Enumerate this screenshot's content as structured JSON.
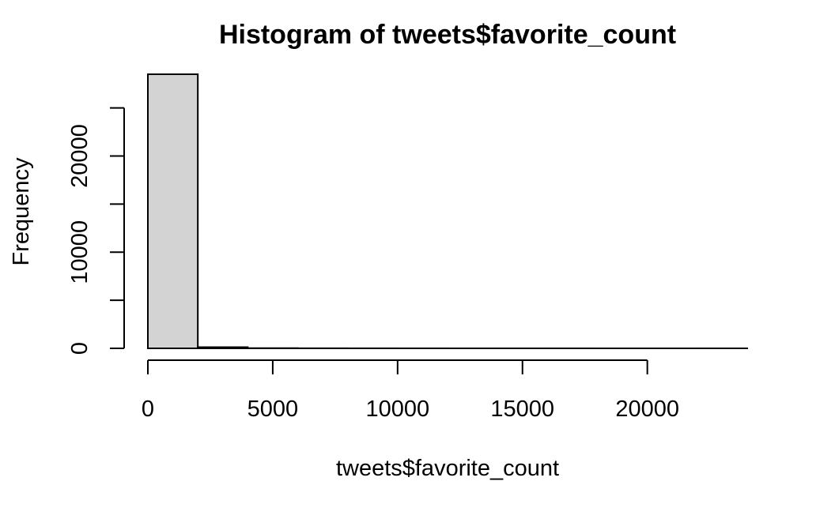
{
  "chart_data": {
    "type": "bar",
    "title": "Histogram of tweets$favorite_count",
    "xlabel": "tweets$favorite_count",
    "ylabel": "Frequency",
    "bin_width": 2000,
    "bins": [
      {
        "start": 0,
        "end": 2000,
        "count": 28500
      },
      {
        "start": 2000,
        "end": 4000,
        "count": 120
      },
      {
        "start": 4000,
        "end": 6000,
        "count": 20
      },
      {
        "start": 6000,
        "end": 8000,
        "count": 8
      },
      {
        "start": 8000,
        "end": 10000,
        "count": 4
      },
      {
        "start": 10000,
        "end": 12000,
        "count": 2
      },
      {
        "start": 12000,
        "end": 14000,
        "count": 1
      },
      {
        "start": 14000,
        "end": 16000,
        "count": 1
      },
      {
        "start": 16000,
        "end": 18000,
        "count": 1
      },
      {
        "start": 18000,
        "end": 20000,
        "count": 0
      },
      {
        "start": 20000,
        "end": 22000,
        "count": 0
      },
      {
        "start": 22000,
        "end": 24000,
        "count": 1
      }
    ],
    "xlim": [
      0,
      24000
    ],
    "ylim": [
      0,
      28500
    ],
    "x_ticks": [
      0,
      5000,
      10000,
      15000,
      20000
    ],
    "y_ticks": [
      0,
      5000,
      10000,
      15000,
      20000,
      25000
    ],
    "y_tick_labels": [
      "0",
      "",
      "10000",
      "",
      "20000",
      ""
    ],
    "bar_fill": "#d3d3d3",
    "bar_stroke": "#000000",
    "grid": false,
    "legend": "none"
  }
}
